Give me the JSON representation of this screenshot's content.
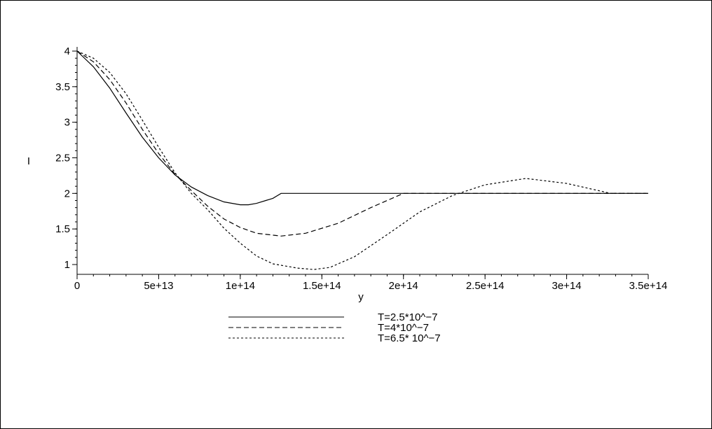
{
  "chart_data": {
    "type": "line",
    "xlabel": "y",
    "ylabel": "I",
    "xlim": [
      0,
      350000000000000.0
    ],
    "ylim": [
      0.85,
      4.05
    ],
    "x_ticks": [
      0,
      50000000000000.0,
      100000000000000.0,
      150000000000000.0,
      200000000000000.0,
      250000000000000.0,
      300000000000000.0,
      350000000000000.0
    ],
    "x_tick_labels": [
      "0",
      "5e+13",
      "1e+14",
      "1.5e+14",
      "2e+14",
      "2.5e+14",
      "3e+14",
      "3.5e+14"
    ],
    "y_ticks": [
      1,
      1.5,
      2,
      2.5,
      3,
      3.5,
      4
    ],
    "y_tick_labels": [
      "1",
      "1.5",
      "2",
      "2.5",
      "3",
      "3.5",
      "4"
    ],
    "legend_position": "bottom-center",
    "series": [
      {
        "name": "T=2.5*10^−7",
        "dash": "solid",
        "points": [
          [
            0,
            4.0
          ],
          [
            10000000000000.0,
            3.78
          ],
          [
            20000000000000.0,
            3.48
          ],
          [
            30000000000000.0,
            3.13
          ],
          [
            40000000000000.0,
            2.79
          ],
          [
            50000000000000.0,
            2.5
          ],
          [
            60000000000000.0,
            2.26
          ],
          [
            70000000000000.0,
            2.09
          ],
          [
            80000000000000.0,
            1.97
          ],
          [
            90000000000000.0,
            1.88
          ],
          [
            100000000000000.0,
            1.84
          ],
          [
            105000000000000.0,
            1.84
          ],
          [
            110000000000000.0,
            1.86
          ],
          [
            120000000000000.0,
            1.93
          ],
          [
            125000000000000.0,
            2.0
          ],
          [
            350000000000000.0,
            2.0
          ]
        ]
      },
      {
        "name": "T=4*10^−7",
        "dash": "dashed",
        "points": [
          [
            0,
            4.0
          ],
          [
            10000000000000.0,
            3.85
          ],
          [
            20000000000000.0,
            3.6
          ],
          [
            30000000000000.0,
            3.27
          ],
          [
            40000000000000.0,
            2.9
          ],
          [
            50000000000000.0,
            2.56
          ],
          [
            60000000000000.0,
            2.27
          ],
          [
            70000000000000.0,
            2.04
          ],
          [
            80000000000000.0,
            1.82
          ],
          [
            90000000000000.0,
            1.64
          ],
          [
            100000000000000.0,
            1.52
          ],
          [
            110000000000000.0,
            1.44
          ],
          [
            125000000000000.0,
            1.4
          ],
          [
            140000000000000.0,
            1.44
          ],
          [
            160000000000000.0,
            1.58
          ],
          [
            180000000000000.0,
            1.8
          ],
          [
            200000000000000.0,
            2.0
          ],
          [
            350000000000000.0,
            2.0
          ]
        ]
      },
      {
        "name": "T=6.5* 10^−7",
        "dash": "dotted",
        "points": [
          [
            0,
            4.0
          ],
          [
            10000000000000.0,
            3.9
          ],
          [
            20000000000000.0,
            3.7
          ],
          [
            30000000000000.0,
            3.4
          ],
          [
            40000000000000.0,
            3.03
          ],
          [
            50000000000000.0,
            2.65
          ],
          [
            60000000000000.0,
            2.29
          ],
          [
            70000000000000.0,
            2.0
          ],
          [
            80000000000000.0,
            1.77
          ],
          [
            90000000000000.0,
            1.51
          ],
          [
            100000000000000.0,
            1.3
          ],
          [
            110000000000000.0,
            1.12
          ],
          [
            120000000000000.0,
            1.01
          ],
          [
            135000000000000.0,
            0.95
          ],
          [
            145000000000000.0,
            0.93
          ],
          [
            155000000000000.0,
            0.96
          ],
          [
            170000000000000.0,
            1.11
          ],
          [
            190000000000000.0,
            1.42
          ],
          [
            210000000000000.0,
            1.74
          ],
          [
            230000000000000.0,
            1.97
          ],
          [
            250000000000000.0,
            2.12
          ],
          [
            275000000000000.0,
            2.21
          ],
          [
            300000000000000.0,
            2.14
          ],
          [
            327000000000000.0,
            2.0
          ],
          [
            350000000000000.0,
            2.0
          ]
        ]
      }
    ]
  }
}
